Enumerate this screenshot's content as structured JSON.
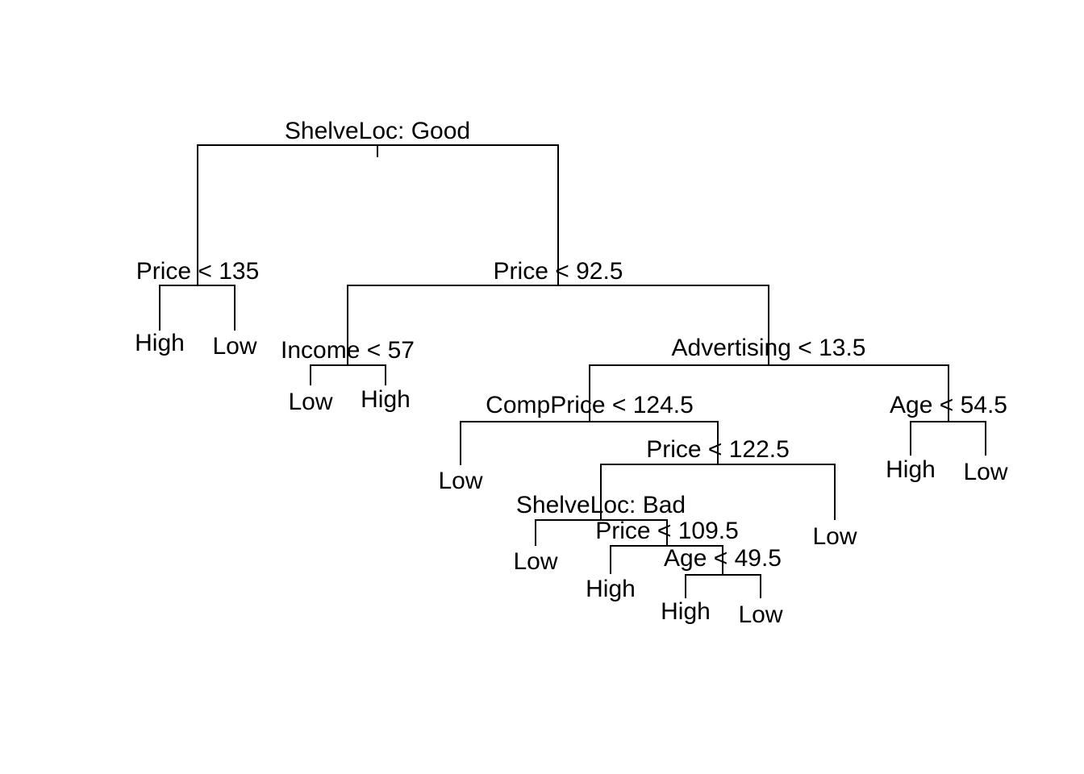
{
  "tree": {
    "splits": {
      "root": "ShelveLoc: Good",
      "n2": "Price < 135",
      "n3": "Price < 92.5",
      "n6": "Income < 57",
      "n7": "Advertising < 13.5",
      "n14": "CompPrice < 124.5",
      "n15": "Age < 54.5",
      "n29": "Price < 122.5",
      "n58": "ShelveLoc: Bad",
      "n117": "Price < 109.5",
      "n235": "Age < 49.5"
    },
    "leaves": {
      "l4": "High",
      "l5": "Low",
      "l12": "Low",
      "l13": "High",
      "l28": "Low",
      "l30": "High",
      "l31": "Low",
      "l59": "Low",
      "l116": "Low",
      "l234": "High",
      "l470": "High",
      "l471": "Low"
    }
  }
}
